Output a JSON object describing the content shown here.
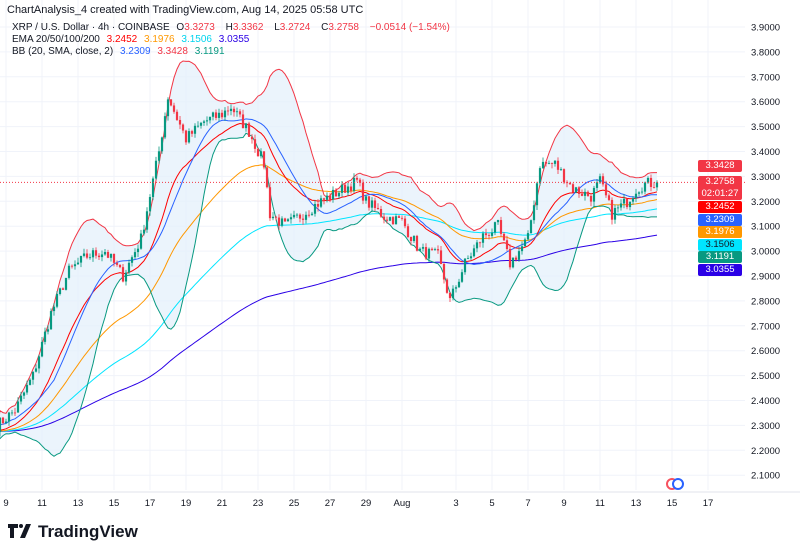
{
  "header": {
    "title": "ChartAnalysis_4 created with TradingView.com, Aug 14, 2025 05:58 UTC"
  },
  "legend": {
    "symbol": "XRP / U.S. Dollar · 4h · COINBASE",
    "o_label": "O",
    "o": "3.3273",
    "h_label": "H",
    "h": "3.3362",
    "l_label": "L",
    "l": "3.2724",
    "c_label": "C",
    "c": "3.2758",
    "change": "−0.0514 (−1.54%)",
    "ema_label": "EMA 20/50/100/200",
    "ema20": "3.2452",
    "ema50": "3.1976",
    "ema100": "3.1506",
    "ema200": "3.0355",
    "bb_label": "BB (20, SMA, close, 2)",
    "bb_basis": "3.2309",
    "bb_upper": "3.3428",
    "bb_lower": "3.1191"
  },
  "colors": {
    "up": "#089981",
    "down": "#f23645",
    "ema20": "#ff0000",
    "ema50": "#ff9800",
    "ema100": "#00e5ff",
    "ema200": "#2a00e6",
    "bb_basis": "#2962ff",
    "bb_upper": "#f23645",
    "bb_lower": "#089981",
    "bb_fill": "#e3f0fb"
  },
  "price_labels": [
    {
      "text": "3.3428",
      "color": "#f23645",
      "price": 3.3428
    },
    {
      "text": "3.2758",
      "sub": "02:01:27",
      "color": "#f23645",
      "price": 3.2758
    },
    {
      "text": "3.2452",
      "color": "#ff0000",
      "price": 3.2452
    },
    {
      "text": "3.2309",
      "color": "#2962ff",
      "price": 3.2309
    },
    {
      "text": "3.1976",
      "color": "#ff9800",
      "price": 3.1976
    },
    {
      "text": "3.1506",
      "color": "#00e5ff",
      "price": 3.1506,
      "dark": true
    },
    {
      "text": "3.1191",
      "color": "#089981",
      "price": 3.1191
    },
    {
      "text": "3.0355",
      "color": "#2a00e6",
      "price": 3.0355
    }
  ],
  "logo": {
    "text": "TradingView"
  },
  "chart_data": {
    "type": "candlestick",
    "ylim": [
      2.05,
      3.95
    ],
    "y_ticks": [
      "3.9000",
      "3.8000",
      "3.7000",
      "3.6000",
      "3.5000",
      "3.4000",
      "3.3000",
      "3.2000",
      "3.1000",
      "3.0000",
      "2.9000",
      "2.8000",
      "2.7000",
      "2.6000",
      "2.5000",
      "2.4000",
      "2.3000",
      "2.2000",
      "2.1000"
    ],
    "x_ticks": [
      {
        "label": "9",
        "date": "07-09"
      },
      {
        "label": "11",
        "date": "07-11"
      },
      {
        "label": "13",
        "date": "07-13"
      },
      {
        "label": "15",
        "date": "07-15"
      },
      {
        "label": "17",
        "date": "07-17"
      },
      {
        "label": "19",
        "date": "07-19"
      },
      {
        "label": "21",
        "date": "07-21"
      },
      {
        "label": "23",
        "date": "07-23"
      },
      {
        "label": "25",
        "date": "07-25"
      },
      {
        "label": "27",
        "date": "07-27"
      },
      {
        "label": "29",
        "date": "07-29"
      },
      {
        "label": "Aug",
        "date": "07-31"
      },
      {
        "label": "3",
        "date": "08-03"
      },
      {
        "label": "5",
        "date": "08-05"
      },
      {
        "label": "7",
        "date": "08-07"
      },
      {
        "label": "9",
        "date": "08-09"
      },
      {
        "label": "11",
        "date": "08-11"
      },
      {
        "label": "13",
        "date": "08-13"
      },
      {
        "label": "15",
        "date": "08-15"
      },
      {
        "label": "17",
        "date": "08-17"
      }
    ],
    "grid": true,
    "close_path": [
      [
        "07-08 12",
        2.3
      ],
      [
        "07-09 12",
        2.36
      ],
      [
        "07-10 12",
        2.5
      ],
      [
        "07-11 12",
        2.75
      ],
      [
        "07-12 12",
        2.92
      ],
      [
        "07-13 12",
        2.98
      ],
      [
        "07-14 12",
        3.0
      ],
      [
        "07-15 12",
        2.9
      ],
      [
        "07-16 12",
        3.05
      ],
      [
        "07-17 12",
        3.4
      ],
      [
        "07-18 00",
        3.62
      ],
      [
        "07-19 00",
        3.45
      ],
      [
        "07-20 00",
        3.52
      ],
      [
        "07-21 00",
        3.55
      ],
      [
        "07-21 12",
        3.58
      ],
      [
        "07-22 12",
        3.48
      ],
      [
        "07-23 08",
        3.35
      ],
      [
        "07-23 16",
        3.15
      ],
      [
        "07-24 12",
        3.1
      ],
      [
        "07-25 12",
        3.15
      ],
      [
        "07-26 12",
        3.2
      ],
      [
        "07-27 12",
        3.24
      ],
      [
        "07-28 12",
        3.28
      ],
      [
        "07-29 00",
        3.2
      ],
      [
        "07-30 00",
        3.14
      ],
      [
        "07-31 00",
        3.12
      ],
      [
        "08-01 00",
        3.0
      ],
      [
        "08-02 00",
        2.98
      ],
      [
        "08-02 16",
        2.8
      ],
      [
        "08-03 12",
        2.95
      ],
      [
        "08-04 12",
        3.06
      ],
      [
        "08-05 08",
        3.1
      ],
      [
        "08-06 00",
        2.95
      ],
      [
        "08-07 00",
        3.05
      ],
      [
        "08-07 16",
        3.35
      ],
      [
        "08-08 12",
        3.35
      ],
      [
        "08-09 12",
        3.25
      ],
      [
        "08-10 12",
        3.22
      ],
      [
        "08-11 00",
        3.28
      ],
      [
        "08-11 16",
        3.15
      ],
      [
        "08-12 12",
        3.2
      ],
      [
        "08-13 00",
        3.25
      ],
      [
        "08-13 12",
        3.27
      ],
      [
        "08-14 04",
        3.2758
      ]
    ]
  }
}
